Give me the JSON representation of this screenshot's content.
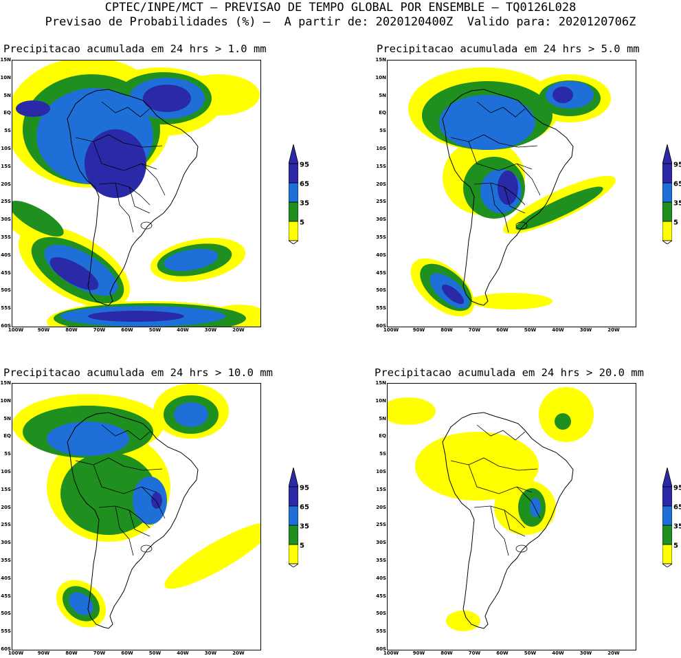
{
  "header": {
    "line1": "CPTEC/INPE/MCT – PREVISAO DE TEMPO GLOBAL POR ENSEMBLE – TQ0126L028",
    "line2": "Previsao de Probabilidades (%) –  A partir de: 2020120400Z  Valido para: 2020120706Z"
  },
  "panels": [
    {
      "title": "Precipitacao acumulada em 24 hrs > 1.0 mm"
    },
    {
      "title": "Precipitacao acumulada em 24 hrs > 5.0 mm"
    },
    {
      "title": "Precipitacao acumulada em 24 hrs > 10.0 mm"
    },
    {
      "title": "Precipitacao acumulada em 24 hrs > 20.0 mm"
    }
  ],
  "lat_labels": [
    "15N",
    "10N",
    "5N",
    "EQ",
    "5S",
    "10S",
    "15S",
    "20S",
    "25S",
    "30S",
    "35S",
    "40S",
    "45S",
    "50S",
    "55S",
    "60S"
  ],
  "lon_labels": [
    "100W",
    "90W",
    "80W",
    "70W",
    "60W",
    "50W",
    "40W",
    "30W",
    "20W"
  ],
  "legend": {
    "labels": [
      "95",
      "65",
      "35",
      "5"
    ],
    "colors": {
      "c5": "#ffff00",
      "c35": "#1f8f1f",
      "c65": "#1f6fd8",
      "c95": "#2a2aa8"
    }
  }
}
